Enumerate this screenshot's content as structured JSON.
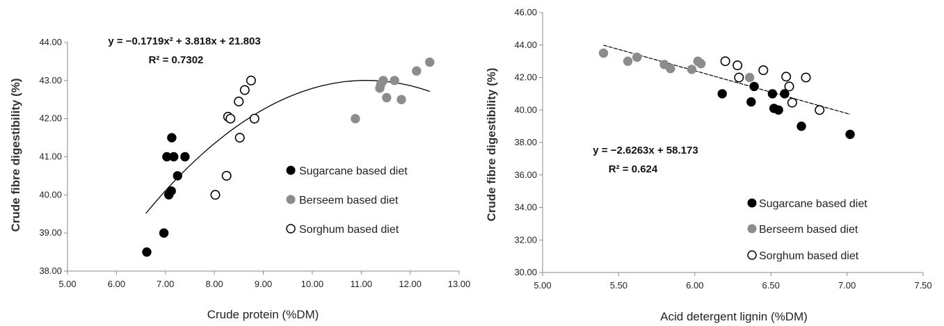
{
  "colors": {
    "sugarcane": "#000000",
    "berseem": "#8c8c8c",
    "sorghum": "#ffffff",
    "axis": "#888888",
    "trend": "#000000"
  },
  "chart_data": [
    {
      "type": "scatter",
      "xlabel": "Crude protein (%DM)",
      "ylabel": "Crude fibre digestibility (%)",
      "xlim": [
        5.0,
        13.0
      ],
      "ylim": [
        38.0,
        44.0
      ],
      "xticks": [
        "5.00",
        "6.00",
        "7.00",
        "8.00",
        "9.00",
        "10.00",
        "11.00",
        "12.00",
        "13.00"
      ],
      "yticks": [
        "38.00",
        "39.00",
        "40.00",
        "41.00",
        "42.00",
        "43.00",
        "44.00"
      ],
      "equation": "y = −0.1719x² + 3.818x + 21.803",
      "r2": "R² = 0.7302",
      "legend_position": "center-right",
      "trendline": {
        "kind": "poly2",
        "coeffs": [
          21.803,
          3.818,
          -0.1719
        ],
        "x_range": [
          6.6,
          12.4
        ]
      },
      "series": [
        {
          "name": "Sugarcane based diet",
          "marker": "filled-black",
          "points": [
            [
              6.62,
              38.5
            ],
            [
              6.97,
              39.0
            ],
            [
              7.07,
              40.0
            ],
            [
              7.12,
              40.1
            ],
            [
              7.03,
              41.0
            ],
            [
              7.17,
              41.0
            ],
            [
              7.13,
              41.5
            ],
            [
              7.25,
              40.5
            ],
            [
              7.4,
              41.0
            ]
          ]
        },
        {
          "name": "Berseem based diet",
          "marker": "filled-gray",
          "points": [
            [
              10.88,
              42.0
            ],
            [
              11.38,
              42.8
            ],
            [
              11.4,
              42.9
            ],
            [
              11.45,
              43.0
            ],
            [
              11.52,
              42.55
            ],
            [
              11.68,
              43.0
            ],
            [
              11.82,
              42.5
            ],
            [
              12.13,
              43.25
            ],
            [
              12.4,
              43.48
            ]
          ]
        },
        {
          "name": "Sorghum based diet",
          "marker": "open",
          "points": [
            [
              8.02,
              40.0
            ],
            [
              8.25,
              40.5
            ],
            [
              8.28,
              42.05
            ],
            [
              8.33,
              42.0
            ],
            [
              8.5,
              42.45
            ],
            [
              8.52,
              41.5
            ],
            [
              8.62,
              42.75
            ],
            [
              8.75,
              43.0
            ],
            [
              8.82,
              42.0
            ]
          ]
        }
      ]
    },
    {
      "type": "scatter",
      "xlabel": "Acid detergent lignin (%DM)",
      "ylabel": "Crude fibre digestibility (%)",
      "xlim": [
        5.0,
        7.5
      ],
      "ylim": [
        30.0,
        46.0
      ],
      "xticks": [
        "5.00",
        "5.50",
        "6.00",
        "6.50",
        "7.00",
        "7.50"
      ],
      "yticks": [
        "30.00",
        "32.00",
        "34.00",
        "36.00",
        "38.00",
        "40.00",
        "42.00",
        "44.00",
        "46.00"
      ],
      "equation": "y = −2.6263x + 58.173",
      "r2": "R² = 0.624",
      "legend_position": "bottom-right",
      "trendline": {
        "kind": "linear",
        "coeffs": [
          58.173,
          -2.6263
        ],
        "x_range": [
          5.4,
          7.02
        ]
      },
      "series": [
        {
          "name": "Sugarcane based diet",
          "marker": "filled-black",
          "points": [
            [
              6.18,
              41.0
            ],
            [
              6.37,
              40.5
            ],
            [
              6.39,
              41.45
            ],
            [
              6.51,
              41.0
            ],
            [
              6.52,
              40.1
            ],
            [
              6.55,
              40.0
            ],
            [
              6.59,
              41.0
            ],
            [
              6.7,
              39.0
            ],
            [
              7.02,
              38.5
            ]
          ]
        },
        {
          "name": "Berseem based diet",
          "marker": "filled-gray",
          "points": [
            [
              5.4,
              43.5
            ],
            [
              5.56,
              43.0
            ],
            [
              5.62,
              43.25
            ],
            [
              5.8,
              42.8
            ],
            [
              5.84,
              42.55
            ],
            [
              5.98,
              42.5
            ],
            [
              6.02,
              43.0
            ],
            [
              6.04,
              42.85
            ],
            [
              6.36,
              42.0
            ]
          ]
        },
        {
          "name": "Sorghum based diet",
          "marker": "open",
          "points": [
            [
              6.2,
              43.0
            ],
            [
              6.28,
              42.75
            ],
            [
              6.29,
              42.0
            ],
            [
              6.45,
              42.45
            ],
            [
              6.6,
              42.05
            ],
            [
              6.62,
              41.45
            ],
            [
              6.64,
              40.45
            ],
            [
              6.73,
              42.0
            ],
            [
              6.82,
              40.0
            ]
          ]
        }
      ]
    }
  ]
}
